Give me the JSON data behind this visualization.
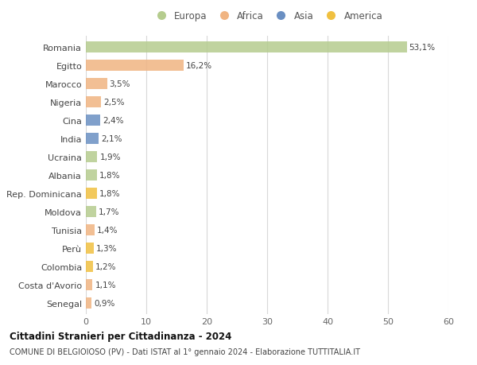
{
  "countries": [
    "Romania",
    "Egitto",
    "Marocco",
    "Nigeria",
    "Cina",
    "India",
    "Ucraina",
    "Albania",
    "Rep. Dominicana",
    "Moldova",
    "Tunisia",
    "Perù",
    "Colombia",
    "Costa d'Avorio",
    "Senegal"
  ],
  "values": [
    53.1,
    16.2,
    3.5,
    2.5,
    2.4,
    2.1,
    1.9,
    1.8,
    1.8,
    1.7,
    1.4,
    1.3,
    1.2,
    1.1,
    0.9
  ],
  "labels": [
    "53,1%",
    "16,2%",
    "3,5%",
    "2,5%",
    "2,4%",
    "2,1%",
    "1,9%",
    "1,8%",
    "1,8%",
    "1,7%",
    "1,4%",
    "1,3%",
    "1,2%",
    "1,1%",
    "0,9%"
  ],
  "colors": [
    "#b5cc8e",
    "#f0b482",
    "#f0b482",
    "#f0b482",
    "#6a8fc2",
    "#6a8fc2",
    "#b5cc8e",
    "#b5cc8e",
    "#f0c040",
    "#b5cc8e",
    "#f0b482",
    "#f0c040",
    "#f0c040",
    "#f0b482",
    "#f0b482"
  ],
  "legend_labels": [
    "Europa",
    "Africa",
    "Asia",
    "America"
  ],
  "legend_colors": [
    "#b5cc8e",
    "#f0b482",
    "#6a8fc2",
    "#f0c040"
  ],
  "title": "Cittadini Stranieri per Cittadinanza - 2024",
  "subtitle": "COMUNE DI BELGIOIOSO (PV) - Dati ISTAT al 1° gennaio 2024 - Elaborazione TUTTITALIA.IT",
  "xlim": [
    0,
    60
  ],
  "xticks": [
    0,
    10,
    20,
    30,
    40,
    50,
    60
  ],
  "bg_color": "#ffffff",
  "grid_color": "#d8d8d8",
  "bar_height": 0.6
}
